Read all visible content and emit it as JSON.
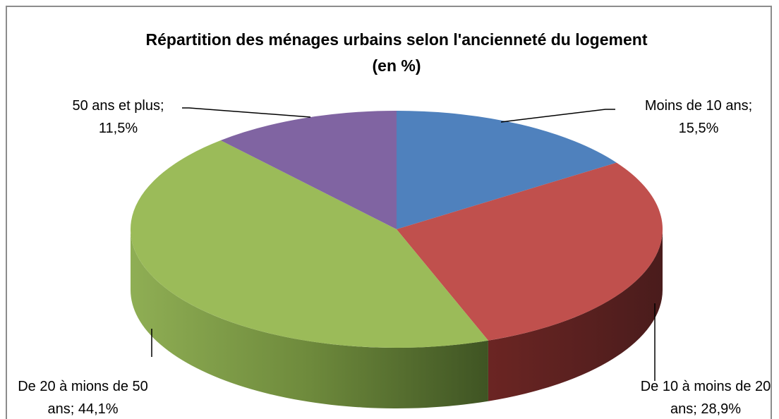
{
  "chart_data": {
    "type": "pie3d",
    "title": "Répartition des ménages urbains selon l'ancienneté du logement (en %)",
    "categories": [
      "Moins de 10 ans",
      "De 10 à moins de 20 ans",
      "De 20 à mions de 50 ans",
      "50 ans et plus"
    ],
    "values": [
      15.5,
      28.9,
      44.1,
      11.5
    ],
    "value_labels": [
      "15,5%",
      "28,9%",
      "44,1%",
      "11,5%"
    ],
    "label_separator": ";",
    "colors": [
      "#4f81bd",
      "#c0504d",
      "#9bbb59",
      "#8064a2"
    ]
  }
}
